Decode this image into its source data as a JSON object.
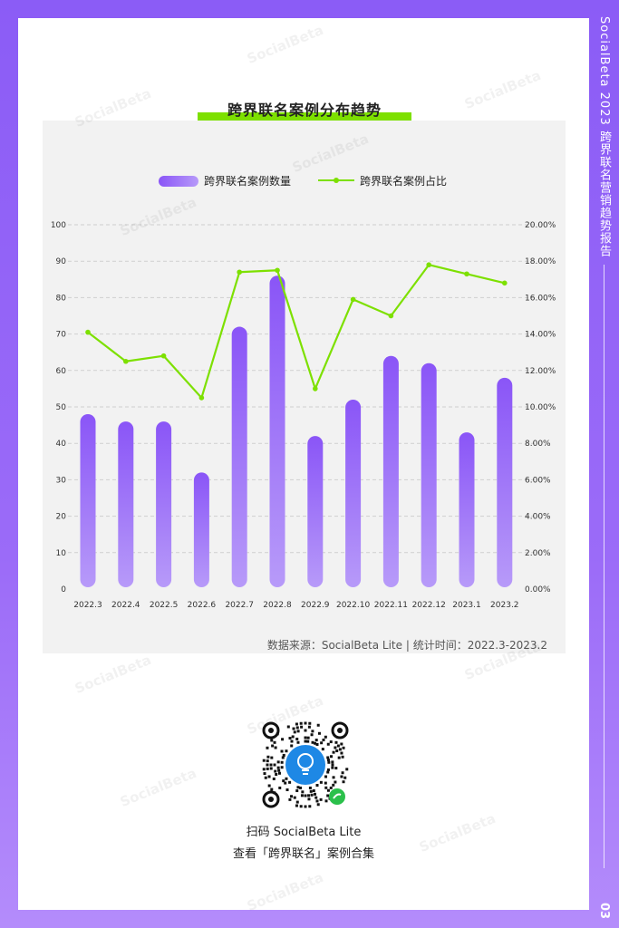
{
  "side_title": "SocialBeta 2023 跨界联名营销趋势报告",
  "page_number": "03",
  "watermark_text": "SocialBeta",
  "source_note": "数据来源：SocialBeta Lite | 统计时间：2022.3-2023.2",
  "qr": {
    "caption_line1": "扫码 SocialBeta Lite",
    "caption_line2": "查看「跨界联名」案例合集"
  },
  "colors": {
    "bar_top": "#8a55f7",
    "bar_bottom": "#b79af9",
    "line": "#7de000",
    "accent": "#7de000",
    "frame": "#8b5cf6"
  },
  "chart_data": {
    "type": "bar",
    "title": "跨界联名案例分布趋势",
    "categories": [
      "2022.3",
      "2022.4",
      "2022.5",
      "2022.6",
      "2022.7",
      "2022.8",
      "2022.9",
      "2022.10",
      "2022.11",
      "2022.12",
      "2023.1",
      "2023.2"
    ],
    "series": [
      {
        "name": "跨界联名案例数量",
        "type": "bar",
        "axis": "left",
        "values": [
          48,
          46,
          46,
          32,
          72,
          86,
          42,
          52,
          64,
          62,
          43,
          58
        ]
      },
      {
        "name": "跨界联名案例占比",
        "type": "line",
        "axis": "right",
        "values": [
          14.1,
          12.5,
          12.8,
          10.5,
          17.4,
          17.5,
          11.0,
          15.9,
          15.0,
          17.8,
          17.3,
          16.8
        ]
      }
    ],
    "y_left": {
      "min": 0,
      "max": 100,
      "ticks": [
        "0",
        "10",
        "20",
        "30",
        "40",
        "50",
        "60",
        "70",
        "80",
        "90",
        "100"
      ]
    },
    "y_right": {
      "min": 0,
      "max": 20,
      "ticks": [
        "0.00%",
        "2.00%",
        "4.00%",
        "6.00%",
        "8.00%",
        "10.00%",
        "12.00%",
        "14.00%",
        "16.00%",
        "18.00%",
        "20.00%"
      ]
    },
    "grid": "dashed horizontal",
    "legend_position": "top"
  }
}
